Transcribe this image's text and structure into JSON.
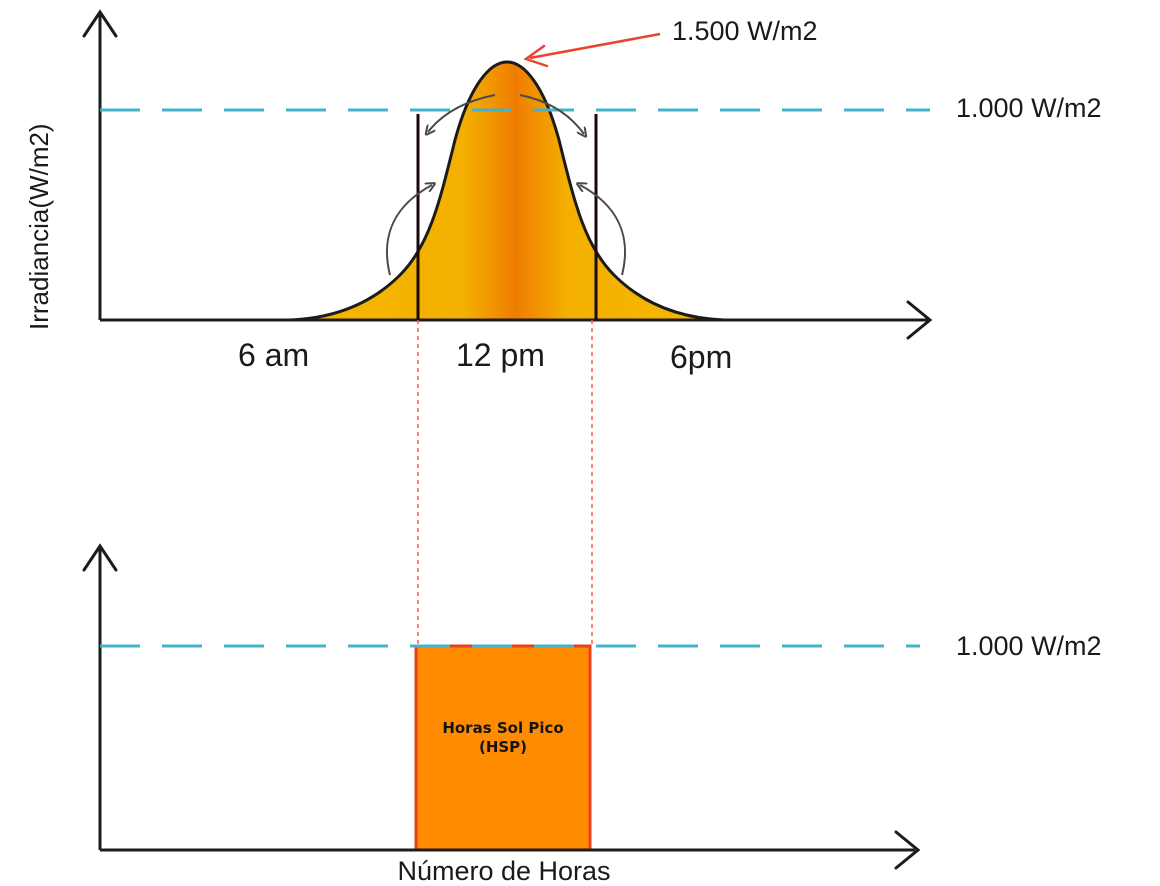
{
  "top_chart": {
    "y_axis_label": "Irradiancia(W/m2)",
    "peak_label": "1.500 W/m2",
    "reference_label": "1.000 W/m2",
    "ticks": [
      "6 am",
      "12 pm",
      "6pm"
    ]
  },
  "bottom_chart": {
    "reference_label": "1.000 W/m2",
    "box_label_line1": "Horas Sol Pico",
    "box_label_line2": "(HSP)",
    "x_axis_label": "Número de Horas"
  },
  "colors": {
    "axis": "#1c1c1c",
    "reference_line": "#44b3c9",
    "curve_fill_edge": "#f4b800",
    "curve_fill_center": "#ef7d00",
    "box_fill": "#ff8c00",
    "box_border": "#e8401e",
    "guide_line": "#ff5a4a",
    "annotation_arrow": "#e8442e"
  },
  "icons": {
    "peak_arrow": "red-arrow-icon",
    "redistribution_arrows": "curved-arrow-icon"
  }
}
